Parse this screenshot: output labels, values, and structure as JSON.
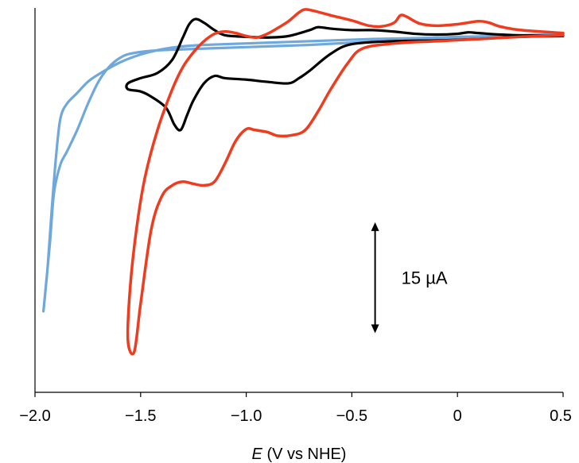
{
  "chart_data": {
    "type": "line",
    "title": "",
    "xlabel": {
      "italic": "E",
      "rest": " (V vs NHE)"
    },
    "ylabel": "",
    "xlim": [
      -2.0,
      0.5
    ],
    "ylim": [
      -47,
      5
    ],
    "x_ticks": [
      -2.0,
      -1.5,
      -1.0,
      -0.5,
      0,
      0.5
    ],
    "x_tick_labels": [
      "−2.0",
      "−1.5",
      "−1.0",
      "−0.5",
      "0",
      "0.5"
    ],
    "grid": false,
    "legend": "none",
    "scale_bar": {
      "label": "15 µA",
      "value": 15,
      "x": -0.39,
      "y_bottom": -39,
      "y_top": -24
    },
    "series": [
      {
        "color": "#6fa8dc",
        "points": [
          [
            0.5,
            1.4
          ],
          [
            0.3,
            1.2
          ],
          [
            0.1,
            1.0
          ],
          [
            -0.1,
            0.8
          ],
          [
            -0.3,
            0.6
          ],
          [
            -0.5,
            0.3
          ],
          [
            -0.7,
            0.0
          ],
          [
            -0.9,
            -0.2
          ],
          [
            -1.1,
            -0.4
          ],
          [
            -1.3,
            -0.6
          ],
          [
            -1.45,
            -0.8
          ],
          [
            -1.55,
            -1.2
          ],
          [
            -1.6,
            -1.8
          ],
          [
            -1.65,
            -3.0
          ],
          [
            -1.7,
            -5.0
          ],
          [
            -1.75,
            -8.0
          ],
          [
            -1.8,
            -11.5
          ],
          [
            -1.85,
            -14.5
          ],
          [
            -1.88,
            -16.2
          ],
          [
            -1.91,
            -20.0
          ],
          [
            -1.93,
            -27.0
          ],
          [
            -1.96,
            -36.0
          ],
          [
            -1.94,
            -30.0
          ],
          [
            -1.92,
            -22.0
          ],
          [
            -1.9,
            -15.0
          ],
          [
            -1.88,
            -10.0
          ],
          [
            -1.85,
            -8.0
          ],
          [
            -1.8,
            -6.5
          ],
          [
            -1.75,
            -5.0
          ],
          [
            -1.7,
            -4.0
          ],
          [
            -1.6,
            -2.4
          ],
          [
            -1.5,
            -1.3
          ],
          [
            -1.4,
            -0.6
          ],
          [
            -1.3,
            -0.2
          ],
          [
            -1.2,
            0.0
          ],
          [
            -1.0,
            0.2
          ],
          [
            -0.8,
            0.4
          ],
          [
            -0.6,
            0.6
          ],
          [
            -0.4,
            0.8
          ],
          [
            -0.2,
            0.9
          ],
          [
            0.0,
            1.1
          ],
          [
            0.2,
            1.2
          ],
          [
            0.5,
            1.5
          ]
        ]
      },
      {
        "color": "#000000",
        "points": [
          [
            0.5,
            1.2
          ],
          [
            0.3,
            1.1
          ],
          [
            0.1,
            0.8
          ],
          [
            -0.1,
            0.6
          ],
          [
            -0.3,
            0.5
          ],
          [
            -0.5,
            0.1
          ],
          [
            -0.6,
            -1.2
          ],
          [
            -0.7,
            -3.5
          ],
          [
            -0.75,
            -4.5
          ],
          [
            -0.8,
            -5.2
          ],
          [
            -0.9,
            -5.0
          ],
          [
            -1.0,
            -4.7
          ],
          [
            -1.1,
            -4.5
          ],
          [
            -1.15,
            -4.2
          ],
          [
            -1.2,
            -5.2
          ],
          [
            -1.25,
            -7.5
          ],
          [
            -1.28,
            -9.5
          ],
          [
            -1.31,
            -11.5
          ],
          [
            -1.34,
            -10.8
          ],
          [
            -1.38,
            -8.5
          ],
          [
            -1.45,
            -7.0
          ],
          [
            -1.5,
            -6.3
          ],
          [
            -1.56,
            -6.0
          ],
          [
            -1.56,
            -5.2
          ],
          [
            -1.5,
            -4.5
          ],
          [
            -1.42,
            -3.8
          ],
          [
            -1.35,
            -2.0
          ],
          [
            -1.3,
            1.0
          ],
          [
            -1.27,
            2.8
          ],
          [
            -1.24,
            3.5
          ],
          [
            -1.2,
            3.0
          ],
          [
            -1.15,
            2.0
          ],
          [
            -1.1,
            1.3
          ],
          [
            -1.0,
            1.1
          ],
          [
            -0.9,
            1.0
          ],
          [
            -0.8,
            1.2
          ],
          [
            -0.7,
            2.0
          ],
          [
            -0.66,
            2.4
          ],
          [
            -0.6,
            2.2
          ],
          [
            -0.5,
            2.0
          ],
          [
            -0.4,
            2.0
          ],
          [
            -0.3,
            1.8
          ],
          [
            -0.2,
            1.5
          ],
          [
            -0.1,
            1.4
          ],
          [
            0.0,
            1.5
          ],
          [
            0.05,
            1.7
          ],
          [
            0.1,
            1.6
          ],
          [
            0.2,
            1.4
          ],
          [
            0.3,
            1.3
          ],
          [
            0.5,
            1.2
          ]
        ]
      },
      {
        "color": "#f03c1e",
        "points": [
          [
            0.5,
            1.3
          ],
          [
            0.3,
            1.1
          ],
          [
            0.1,
            0.8
          ],
          [
            -0.1,
            0.5
          ],
          [
            -0.3,
            0.2
          ],
          [
            -0.45,
            -0.5
          ],
          [
            -0.52,
            -2.5
          ],
          [
            -0.6,
            -6.0
          ],
          [
            -0.66,
            -9.0
          ],
          [
            -0.72,
            -11.5
          ],
          [
            -0.78,
            -12.2
          ],
          [
            -0.85,
            -12.3
          ],
          [
            -0.9,
            -11.8
          ],
          [
            -0.96,
            -11.5
          ],
          [
            -1.0,
            -11.4
          ],
          [
            -1.05,
            -13.0
          ],
          [
            -1.1,
            -16.0
          ],
          [
            -1.15,
            -18.5
          ],
          [
            -1.2,
            -19.0
          ],
          [
            -1.25,
            -18.8
          ],
          [
            -1.3,
            -18.5
          ],
          [
            -1.35,
            -19.0
          ],
          [
            -1.4,
            -20.5
          ],
          [
            -1.45,
            -25.0
          ],
          [
            -1.5,
            -35.0
          ],
          [
            -1.53,
            -41.5
          ],
          [
            -1.56,
            -40.0
          ],
          [
            -1.55,
            -33.0
          ],
          [
            -1.52,
            -25.0
          ],
          [
            -1.48,
            -18.0
          ],
          [
            -1.42,
            -11.5
          ],
          [
            -1.35,
            -6.0
          ],
          [
            -1.3,
            -3.0
          ],
          [
            -1.25,
            -1.0
          ],
          [
            -1.2,
            0.5
          ],
          [
            -1.15,
            1.5
          ],
          [
            -1.1,
            1.8
          ],
          [
            -1.05,
            1.6
          ],
          [
            -1.0,
            1.2
          ],
          [
            -0.95,
            1.0
          ],
          [
            -0.9,
            1.5
          ],
          [
            -0.85,
            2.3
          ],
          [
            -0.8,
            3.2
          ],
          [
            -0.75,
            4.4
          ],
          [
            -0.72,
            4.8
          ],
          [
            -0.68,
            4.6
          ],
          [
            -0.6,
            4.0
          ],
          [
            -0.5,
            3.3
          ],
          [
            -0.42,
            2.6
          ],
          [
            -0.36,
            2.5
          ],
          [
            -0.3,
            3.0
          ],
          [
            -0.27,
            4.0
          ],
          [
            -0.24,
            3.8
          ],
          [
            -0.18,
            2.9
          ],
          [
            -0.1,
            2.6
          ],
          [
            0.0,
            2.8
          ],
          [
            0.1,
            3.2
          ],
          [
            0.15,
            3.0
          ],
          [
            0.2,
            2.5
          ],
          [
            0.3,
            2.0
          ],
          [
            0.5,
            1.6
          ]
        ]
      }
    ]
  }
}
